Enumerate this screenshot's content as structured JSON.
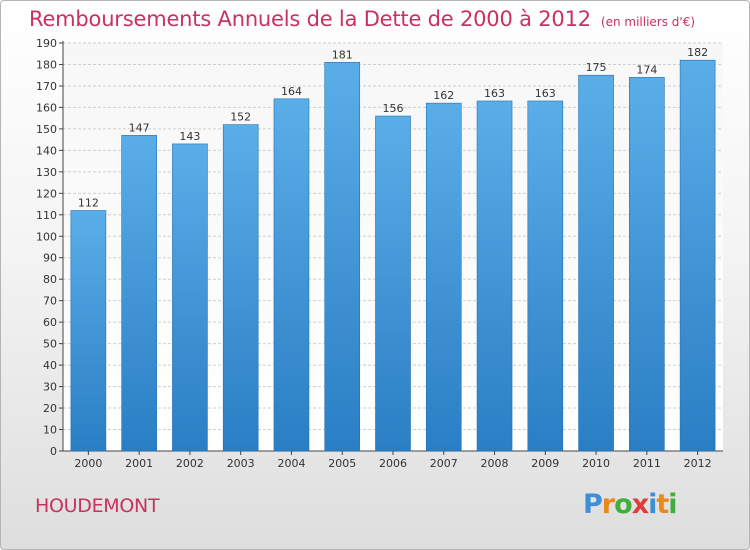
{
  "header": {
    "title": "Remboursements Annuels de la Dette de 2000 à 2012",
    "unit": "(en milliers d'€)"
  },
  "footer": {
    "commune": "HOUDEMONT",
    "logo": {
      "text": "Proxiti",
      "icon": "proxiti-logo"
    }
  },
  "colors": {
    "title": "#c8325e",
    "bar_top": "#5aaee8",
    "bar_bottom": "#2a7ec4",
    "grid": "#cfcfcf"
  },
  "chart_data": {
    "type": "bar",
    "title": "Remboursements Annuels de la Dette de 2000 à 2012",
    "xlabel": "",
    "ylabel": "",
    "categories": [
      "2000",
      "2001",
      "2002",
      "2003",
      "2004",
      "2005",
      "2006",
      "2007",
      "2008",
      "2009",
      "2010",
      "2011",
      "2012"
    ],
    "values": [
      112,
      147,
      143,
      152,
      164,
      181,
      156,
      162,
      163,
      163,
      175,
      174,
      182
    ],
    "ylim": [
      0,
      190
    ],
    "yticks": [
      0,
      10,
      20,
      30,
      40,
      50,
      60,
      70,
      80,
      90,
      100,
      110,
      120,
      130,
      140,
      150,
      160,
      170,
      180,
      190
    ],
    "grid": true,
    "legend": "none"
  }
}
